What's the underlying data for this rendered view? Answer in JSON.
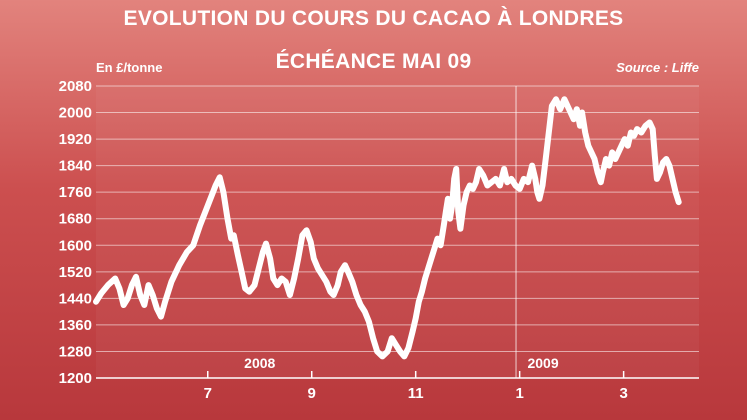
{
  "chart_data": {
    "type": "line",
    "title": "EVOLUTION DU COURS DU CACAO À LONDRES",
    "subtitle": "ÉCHÉANCE MAI 09",
    "ylabel": "En £/tonne",
    "source": "Source : Liffe",
    "ylim": [
      1200,
      2080
    ],
    "y_ticks": [
      1200,
      1280,
      1360,
      1440,
      1520,
      1600,
      1680,
      1760,
      1840,
      1920,
      2000,
      2080
    ],
    "x_ticks": [
      {
        "label": "7",
        "x": 6.0
      },
      {
        "label": "9",
        "x": 8.0
      },
      {
        "label": "11",
        "x": 10.0
      },
      {
        "label": "1",
        "x": 12.0
      },
      {
        "label": "3",
        "x": 14.0
      }
    ],
    "year_labels": [
      {
        "label": "2008",
        "x": 7.0
      },
      {
        "label": "2009",
        "x": 12.45
      }
    ],
    "xlim": [
      3.85,
      15.45
    ],
    "year_boundary": 11.93,
    "grid": true,
    "series": [
      {
        "values": [
          [
            3.85,
            1430
          ],
          [
            3.95,
            1455
          ],
          [
            4.08,
            1480
          ],
          [
            4.22,
            1500
          ],
          [
            4.3,
            1470
          ],
          [
            4.38,
            1420
          ],
          [
            4.46,
            1440
          ],
          [
            4.54,
            1480
          ],
          [
            4.62,
            1505
          ],
          [
            4.7,
            1450
          ],
          [
            4.78,
            1420
          ],
          [
            4.86,
            1480
          ],
          [
            4.94,
            1450
          ],
          [
            5.02,
            1410
          ],
          [
            5.1,
            1385
          ],
          [
            5.18,
            1430
          ],
          [
            5.3,
            1490
          ],
          [
            5.45,
            1540
          ],
          [
            5.6,
            1580
          ],
          [
            5.72,
            1600
          ],
          [
            5.85,
            1660
          ],
          [
            6.0,
            1720
          ],
          [
            6.15,
            1780
          ],
          [
            6.23,
            1805
          ],
          [
            6.3,
            1760
          ],
          [
            6.38,
            1680
          ],
          [
            6.45,
            1620
          ],
          [
            6.5,
            1630
          ],
          [
            6.58,
            1570
          ],
          [
            6.65,
            1520
          ],
          [
            6.72,
            1470
          ],
          [
            6.8,
            1460
          ],
          [
            6.9,
            1480
          ],
          [
            6.98,
            1530
          ],
          [
            7.06,
            1580
          ],
          [
            7.12,
            1605
          ],
          [
            7.2,
            1560
          ],
          [
            7.26,
            1500
          ],
          [
            7.34,
            1480
          ],
          [
            7.42,
            1500
          ],
          [
            7.5,
            1490
          ],
          [
            7.58,
            1450
          ],
          [
            7.66,
            1500
          ],
          [
            7.74,
            1560
          ],
          [
            7.82,
            1630
          ],
          [
            7.9,
            1645
          ],
          [
            7.98,
            1610
          ],
          [
            8.04,
            1560
          ],
          [
            8.12,
            1530
          ],
          [
            8.2,
            1510
          ],
          [
            8.28,
            1490
          ],
          [
            8.36,
            1460
          ],
          [
            8.42,
            1450
          ],
          [
            8.5,
            1480
          ],
          [
            8.56,
            1520
          ],
          [
            8.64,
            1540
          ],
          [
            8.7,
            1520
          ],
          [
            8.78,
            1490
          ],
          [
            8.86,
            1450
          ],
          [
            8.94,
            1420
          ],
          [
            9.02,
            1400
          ],
          [
            9.1,
            1370
          ],
          [
            9.18,
            1320
          ],
          [
            9.26,
            1280
          ],
          [
            9.36,
            1265
          ],
          [
            9.46,
            1280
          ],
          [
            9.54,
            1320
          ],
          [
            9.62,
            1300
          ],
          [
            9.7,
            1280
          ],
          [
            9.78,
            1265
          ],
          [
            9.86,
            1290
          ],
          [
            9.94,
            1340
          ],
          [
            10.0,
            1380
          ],
          [
            10.06,
            1430
          ],
          [
            10.12,
            1460
          ],
          [
            10.18,
            1500
          ],
          [
            10.24,
            1530
          ],
          [
            10.3,
            1560
          ],
          [
            10.36,
            1590
          ],
          [
            10.42,
            1620
          ],
          [
            10.48,
            1600
          ],
          [
            10.54,
            1660
          ],
          [
            10.58,
            1700
          ],
          [
            10.62,
            1740
          ],
          [
            10.66,
            1680
          ],
          [
            10.7,
            1720
          ],
          [
            10.74,
            1800
          ],
          [
            10.78,
            1830
          ],
          [
            10.82,
            1700
          ],
          [
            10.86,
            1650
          ],
          [
            10.92,
            1720
          ],
          [
            10.98,
            1760
          ],
          [
            11.04,
            1780
          ],
          [
            11.1,
            1770
          ],
          [
            11.16,
            1790
          ],
          [
            11.22,
            1830
          ],
          [
            11.3,
            1810
          ],
          [
            11.38,
            1780
          ],
          [
            11.46,
            1790
          ],
          [
            11.54,
            1800
          ],
          [
            11.62,
            1780
          ],
          [
            11.7,
            1830
          ],
          [
            11.76,
            1790
          ],
          [
            11.84,
            1800
          ],
          [
            11.92,
            1780
          ],
          [
            12.0,
            1770
          ],
          [
            12.08,
            1800
          ],
          [
            12.16,
            1790
          ],
          [
            12.24,
            1840
          ],
          [
            12.3,
            1800
          ],
          [
            12.34,
            1760
          ],
          [
            12.38,
            1740
          ],
          [
            12.44,
            1780
          ],
          [
            12.5,
            1860
          ],
          [
            12.56,
            1940
          ],
          [
            12.62,
            2020
          ],
          [
            12.7,
            2040
          ],
          [
            12.78,
            2010
          ],
          [
            12.86,
            2040
          ],
          [
            12.92,
            2020
          ],
          [
            12.98,
            2000
          ],
          [
            13.04,
            1980
          ],
          [
            13.1,
            2010
          ],
          [
            13.16,
            1960
          ],
          [
            13.2,
            2000
          ],
          [
            13.26,
            1940
          ],
          [
            13.32,
            1900
          ],
          [
            13.38,
            1880
          ],
          [
            13.44,
            1860
          ],
          [
            13.5,
            1820
          ],
          [
            13.56,
            1790
          ],
          [
            13.6,
            1820
          ],
          [
            13.66,
            1860
          ],
          [
            13.72,
            1840
          ],
          [
            13.78,
            1880
          ],
          [
            13.84,
            1860
          ],
          [
            13.9,
            1880
          ],
          [
            13.96,
            1900
          ],
          [
            14.02,
            1920
          ],
          [
            14.08,
            1900
          ],
          [
            14.14,
            1940
          ],
          [
            14.2,
            1930
          ],
          [
            14.26,
            1950
          ],
          [
            14.34,
            1940
          ],
          [
            14.42,
            1960
          ],
          [
            14.5,
            1970
          ],
          [
            14.56,
            1950
          ],
          [
            14.6,
            1870
          ],
          [
            14.64,
            1800
          ],
          [
            14.7,
            1820
          ],
          [
            14.76,
            1850
          ],
          [
            14.82,
            1860
          ],
          [
            14.88,
            1840
          ],
          [
            14.94,
            1800
          ],
          [
            15.0,
            1760
          ],
          [
            15.06,
            1730
          ]
        ]
      }
    ]
  }
}
